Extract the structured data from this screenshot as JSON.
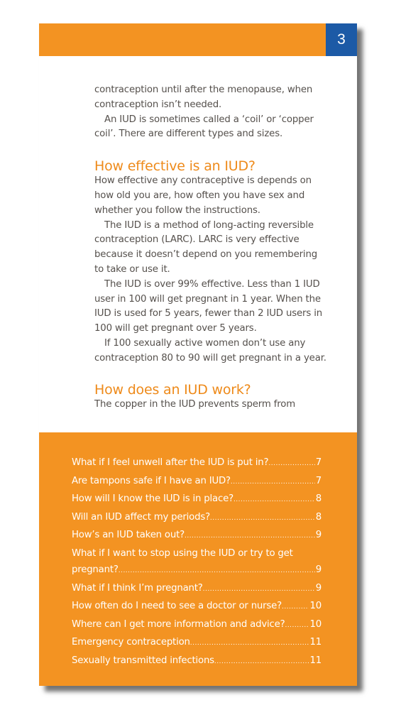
{
  "header": {
    "page_number": "3"
  },
  "content": {
    "para_continuation": "contraception until after the menopause, when contraception isn’t needed.",
    "para_coil": "An IUD is sometimes called a ‘coil’ or ‘copper coil’. There are different types and sizes.",
    "heading_effective": "How effective is an IUD?",
    "para_effective_1": "How effective any contraceptive is depends on how old you are, how often you have sex and whether you follow the instructions.",
    "para_effective_2": "The IUD is a method of long-acting reversible contraception (LARC). LARC is very effective because it doesn’t depend on you remembering to take or use it.",
    "para_effective_3": "The IUD is over 99% effective. Less than 1 IUD user in 100 will get pregnant in 1 year. When the IUD is used for 5 years, fewer than 2 IUD users in 100 will get pregnant over 5 years.",
    "para_effective_4": "If 100 sexually active women don’t use any contraception 80 to 90 will get pregnant in a year.",
    "heading_work": "How does an IUD work?",
    "para_work": "The copper in the IUD prevents sperm from"
  },
  "toc": {
    "items": [
      {
        "text": "What if I feel unwell after the IUD is put in?",
        "page": "7"
      },
      {
        "text": "Are tampons safe if I have an IUD?",
        "page": "7"
      },
      {
        "text": "How will I know the IUD is in place?",
        "page": "8"
      },
      {
        "text": "Will an IUD affect my periods?",
        "page": "8"
      },
      {
        "text": "How’s an IUD taken out?",
        "page": "9"
      },
      {
        "text_line1": "What if I want to stop using the IUD or try to get",
        "text": "pregnant?",
        "page": "9"
      },
      {
        "text": "What if I think I’m pregnant?",
        "page": "9"
      },
      {
        "text": "How often do I need to see a doctor or nurse?",
        "page": "10"
      },
      {
        "text": "Where can I get more information and advice?",
        "page": "10"
      },
      {
        "text": "Emergency contraception",
        "page": "11"
      },
      {
        "text": "Sexually transmitted infections",
        "page": "11"
      }
    ]
  }
}
